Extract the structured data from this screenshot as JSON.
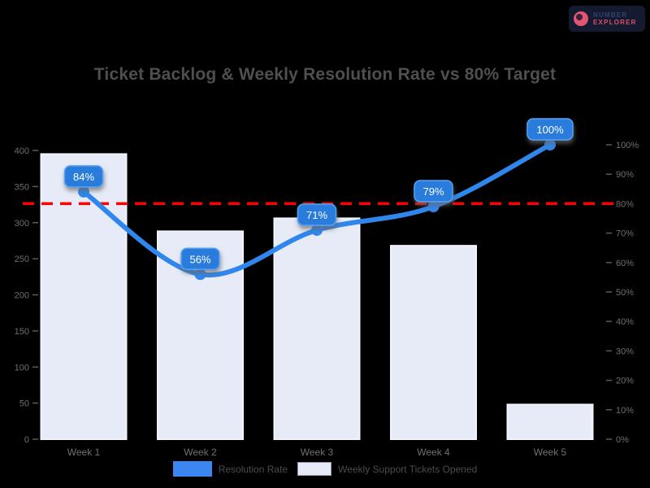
{
  "title": "Ticket Backlog & Weekly Resolution Rate vs 80% Target",
  "logo": {
    "line1": "NUMBER",
    "line2": "EXPLORER"
  },
  "colors": {
    "background": "#000000",
    "title_text": "#4f4f4f",
    "axis_text": "#6e6e6e",
    "bar_fill": "#e6ebf7",
    "bar_border": "#f2f4fb",
    "line": "#2f86ec",
    "point_label_fill": "#2a7bdc",
    "point_label_border": "#57a2f3",
    "point_label_text": "#ffffff",
    "target_line": "#ff0000",
    "legend_text": "#4c4c4c"
  },
  "chart_data": {
    "type": "combo",
    "title": "Ticket Backlog & Weekly Resolution Rate vs 80% Target",
    "categories": [
      "Week 1",
      "Week 2",
      "Week 3",
      "Week 4",
      "Week 5"
    ],
    "series": [
      {
        "name": "Resolution Rate",
        "type": "line",
        "axis": "right",
        "color": "#2f86ec",
        "values": [
          84,
          56,
          71,
          79,
          100
        ],
        "point_labels": [
          "84%",
          "56%",
          "71%",
          "79%",
          "100%"
        ]
      },
      {
        "name": "Weekly Support Tickets Opened",
        "type": "bar",
        "axis": "left",
        "color": "#e6ebf7",
        "values": [
          395,
          288,
          306,
          268,
          48
        ]
      }
    ],
    "target_line": {
      "axis": "right",
      "value": 80,
      "color": "#ff0000",
      "style": "dashed"
    },
    "left_axis": {
      "min": 0,
      "max": 400,
      "step": 50,
      "ticks": [
        0,
        50,
        100,
        150,
        200,
        250,
        300,
        350,
        400
      ]
    },
    "right_axis": {
      "min": 0,
      "max": 100,
      "step": 10,
      "suffix": "%",
      "ticks": [
        0,
        10,
        20,
        30,
        40,
        50,
        60,
        70,
        80,
        90,
        100
      ]
    },
    "grid": false,
    "legend_position": "bottom"
  },
  "legend": {
    "items": [
      {
        "label": "Resolution Rate",
        "swatch": "line",
        "color": "#3b86f0"
      },
      {
        "label": "Weekly Support Tickets Opened",
        "swatch": "bar",
        "color": "#e6ebf7"
      }
    ]
  }
}
